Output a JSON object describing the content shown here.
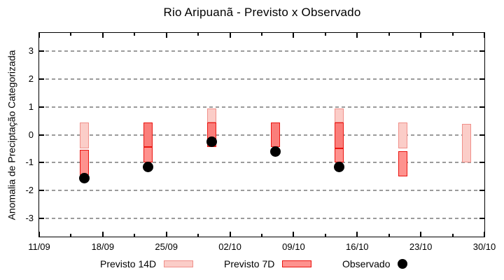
{
  "chart_data": {
    "type": "bar",
    "title": "Rio Aripuanã - Previsto x Observado",
    "ylabel": "Anomalia de Preciptação Categorizada",
    "ylim": [
      -3.65,
      3.65
    ],
    "yticks": [
      3,
      2,
      1,
      0,
      -1,
      -2,
      -3
    ],
    "grid": "horizontal dashed",
    "xtick_labels": [
      "11/09",
      "18/09",
      "25/09",
      "02/10",
      "09/10",
      "16/10",
      "23/10",
      "30/10"
    ],
    "x_axis_span_days": 49,
    "legend_position": "below",
    "legend": {
      "previsto14": "Previsto 14D",
      "previsto7": "Previsto 7D",
      "observado": "Observado"
    },
    "colors": {
      "previsto14_fill": "#fbcdc8",
      "previsto14_border": "#f0908a",
      "previsto7_fill": "#fe928e",
      "previsto7_border": "#ea1510",
      "overlap_fill": "#fa7e7a",
      "observed": "#000000",
      "grid": "#9b9b9b",
      "axis": "#000000"
    },
    "groups": [
      {
        "date": "16/09",
        "day_offset": 5,
        "previsto14": [
          -0.5,
          0.45
        ],
        "previsto7": [
          -1.45,
          -0.55
        ],
        "observed": -1.55
      },
      {
        "date": "23/09",
        "day_offset": 12,
        "previsto14": [
          -0.45,
          0.45
        ],
        "previsto7": [
          -1.0,
          0.45
        ],
        "observed": -1.15
      },
      {
        "date": "30/09",
        "day_offset": 19,
        "previsto14": [
          -0.45,
          0.95
        ],
        "previsto7": [
          -0.45,
          0.45
        ],
        "observed": -0.25
      },
      {
        "date": "07/10",
        "day_offset": 26,
        "previsto14": [
          -0.45,
          0.45
        ],
        "previsto7": [
          -0.45,
          0.45
        ],
        "observed": -0.6
      },
      {
        "date": "14/10",
        "day_offset": 33,
        "previsto14": [
          -0.5,
          0.95
        ],
        "previsto7": [
          -1.0,
          0.45
        ],
        "observed": -1.15
      },
      {
        "date": "21/10",
        "day_offset": 40,
        "previsto14": [
          -0.5,
          0.45
        ],
        "previsto7": [
          -1.5,
          -0.6
        ],
        "observed": null
      },
      {
        "date": "28/10",
        "day_offset": 47,
        "previsto14": [
          -1.0,
          0.4
        ],
        "previsto7": null,
        "observed": null
      }
    ]
  }
}
